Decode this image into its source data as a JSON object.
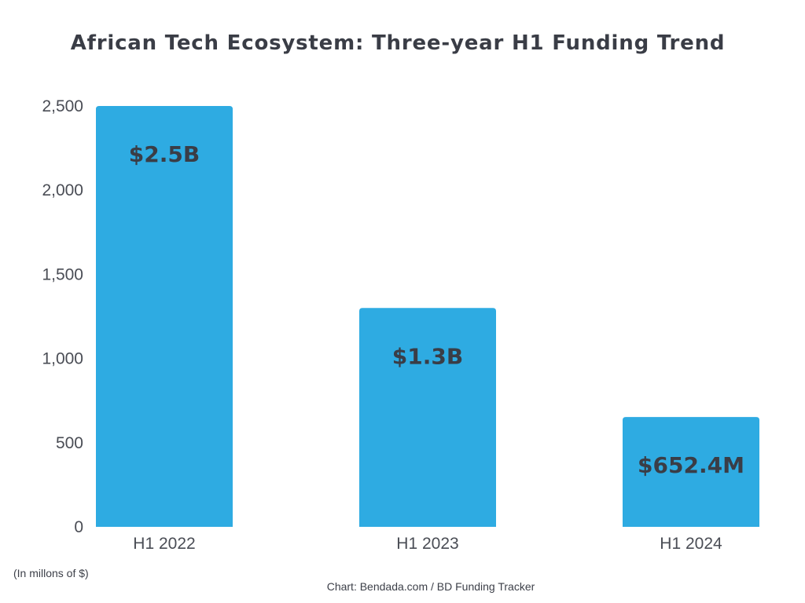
{
  "chart_data": {
    "type": "bar",
    "title": "African Tech Ecosystem: Three-year H1 Funding Trend",
    "categories": [
      "H1 2022",
      "H1 2023",
      "H1 2024"
    ],
    "values": [
      2500,
      1300,
      652.4
    ],
    "data_labels": [
      "$2.5B",
      "$1.3B",
      "$652.4M"
    ],
    "ylim": [
      0,
      2500
    ],
    "yticks": [
      0,
      500,
      1000,
      1500,
      2000,
      2500
    ],
    "ytick_labels": [
      "0",
      "500",
      "1,000",
      "1,500",
      "2,000",
      "2,500"
    ],
    "xlabel": "",
    "ylabel": "",
    "grid": false,
    "unit_note": "(In millons of $)",
    "source": "Chart: Bendada.com / BD Funding Tracker",
    "colors": {
      "bar": "#2eabe2",
      "text": "#3a3d46"
    }
  }
}
